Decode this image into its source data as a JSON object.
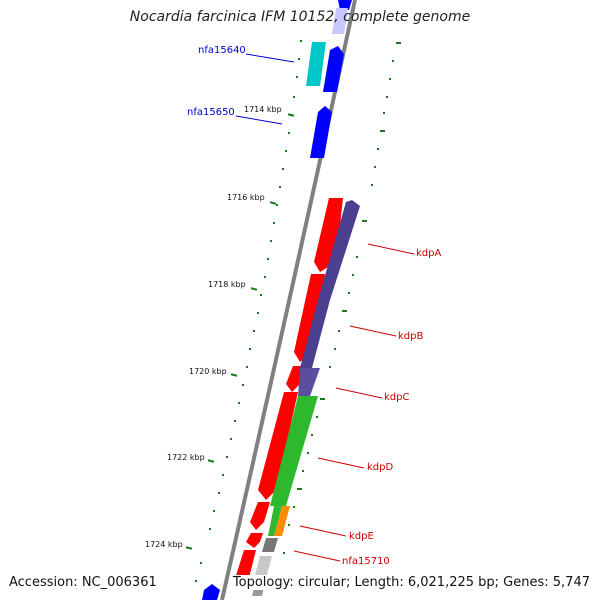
{
  "title": "Nocardia farcinica IFM 10152, complete genome",
  "footer": {
    "accession": "Accession: NC_006361",
    "topology": "Topology: circular; Length: 6,021,225 bp; Genes: 5,747"
  },
  "ticks": [
    "1714 kbp",
    "1716 kbp",
    "1718 kbp",
    "1720 kbp",
    "1722 kbp",
    "1724 kbp"
  ],
  "gene_labels": {
    "nfa15640": "nfa15640",
    "nfa15650": "nfa15650",
    "kdpA": "kdpA",
    "kdpB": "kdpB",
    "kdpC": "kdpC",
    "kdpD": "kdpD",
    "kdpE": "kdpE",
    "nfa15710": "nfa15710"
  },
  "colors": {
    "backbone": "#808080",
    "forward_blue": "#0000ff",
    "teal": "#00c8c8",
    "red": "#ff0000",
    "purple": "#4b3f8f",
    "green": "#2db82d",
    "orange": "#ff8c00",
    "gray": "#777777",
    "tick_green": "#1a7a1a",
    "label_blue": "#0000cc",
    "label_red": "#cc0000"
  }
}
